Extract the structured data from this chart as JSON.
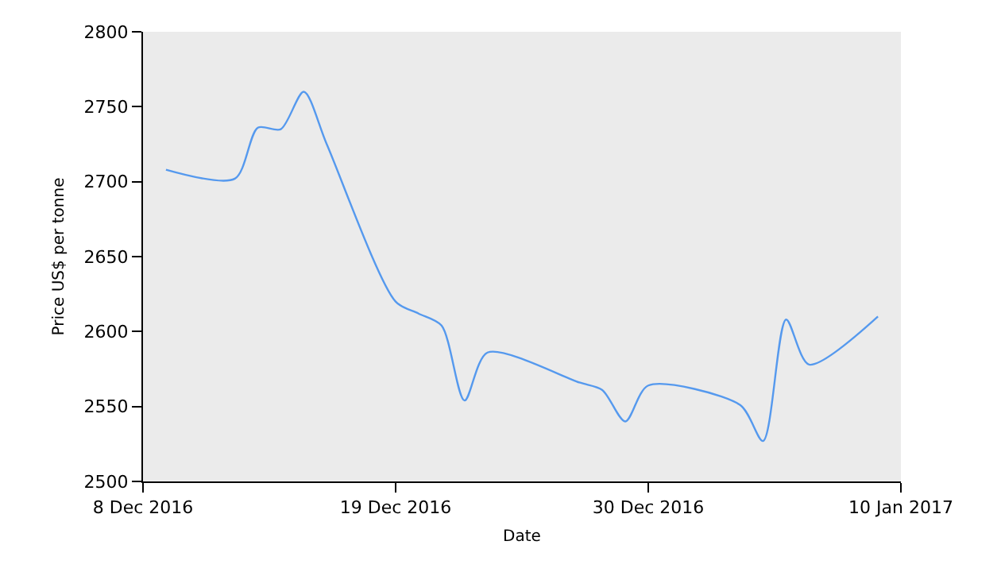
{
  "chart_data": {
    "type": "line",
    "xlabel": "Date",
    "ylabel": "Price US$ per tonne",
    "x": [
      "2016-12-09",
      "2016-12-12",
      "2016-12-13",
      "2016-12-14",
      "2016-12-15",
      "2016-12-16",
      "2016-12-19",
      "2016-12-20",
      "2016-12-21",
      "2016-12-22",
      "2016-12-23",
      "2016-12-27",
      "2016-12-28",
      "2016-12-29",
      "2016-12-30",
      "2017-01-03",
      "2017-01-04",
      "2017-01-05",
      "2017-01-06",
      "2017-01-09"
    ],
    "series": [
      {
        "color": "#5599ee",
        "values": [
          2708,
          2702,
          2736,
          2735,
          2760,
          2725,
          2620,
          2612,
          2604,
          2554,
          2586,
          2566,
          2561,
          2540,
          2564,
          2551,
          2527,
          2608,
          2578,
          2610
        ]
      }
    ],
    "xlim": [
      "2016-12-08",
      "2017-01-10"
    ],
    "xticks": [
      {
        "value": "2016-12-08",
        "label": "8 Dec 2016"
      },
      {
        "value": "2016-12-19",
        "label": "19 Dec 2016"
      },
      {
        "value": "2016-12-30",
        "label": "30 Dec 2016"
      },
      {
        "value": "2017-01-10",
        "label": "10 Jan 2017"
      }
    ],
    "ylim": [
      2500,
      2800
    ],
    "yticks": [
      2500,
      2550,
      2600,
      2650,
      2700,
      2750,
      2800
    ],
    "grid": false,
    "marker": "none",
    "line_style": "solid"
  }
}
